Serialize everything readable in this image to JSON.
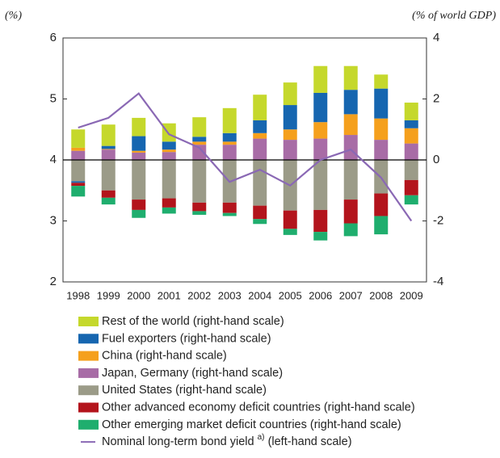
{
  "chart_data": {
    "type": "stacked_bar_line",
    "left_axis_label": "(%)",
    "right_axis_label": "(% of world GDP)",
    "categories": [
      "1998",
      "1999",
      "2000",
      "2001",
      "2002",
      "2003",
      "2004",
      "2005",
      "2006",
      "2007",
      "2008",
      "2009"
    ],
    "series": [
      {
        "name": "Rest of the world (right-hand scale)",
        "color": "#c5d82c",
        "axis": "y2",
        "values": [
          0.6,
          0.7,
          0.6,
          0.6,
          0.64,
          0.82,
          0.84,
          0.74,
          0.88,
          0.78,
          0.46,
          0.58
        ]
      },
      {
        "name": "Fuel exporters (right-hand scale)",
        "color": "#1666b0",
        "axis": "y2",
        "values": [
          -0.05,
          0.1,
          0.48,
          0.26,
          0.16,
          0.28,
          0.42,
          0.8,
          0.96,
          0.8,
          0.98,
          0.26
        ]
      },
      {
        "name": "China (right-hand scale)",
        "color": "#f5a01d",
        "axis": "y2",
        "values": [
          0.1,
          0.02,
          0.06,
          0.08,
          0.1,
          0.1,
          0.18,
          0.34,
          0.54,
          0.68,
          0.7,
          0.5
        ]
      },
      {
        "name": "Japan, Germany (right-hand scale)",
        "color": "#a86ca6",
        "axis": "y2",
        "values": [
          0.3,
          0.34,
          0.24,
          0.26,
          0.5,
          0.5,
          0.7,
          0.66,
          0.7,
          0.82,
          0.66,
          0.54
        ]
      },
      {
        "name": "United States (right-hand scale)",
        "color": "#9b9b88",
        "axis": "y2",
        "values": [
          -0.7,
          -1.0,
          -1.3,
          -1.26,
          -1.4,
          -1.4,
          -1.5,
          -1.66,
          -1.64,
          -1.3,
          -1.1,
          -0.66
        ]
      },
      {
        "name": "Other advanced economy deficit countries (right-hand scale)",
        "color": "#b3141c",
        "axis": "y2",
        "values": [
          -0.1,
          -0.24,
          -0.34,
          -0.3,
          -0.28,
          -0.34,
          -0.44,
          -0.6,
          -0.72,
          -0.78,
          -0.74,
          -0.5
        ]
      },
      {
        "name": "Other emerging market deficit countries (right-hand scale)",
        "color": "#1fae6e",
        "axis": "y2",
        "values": [
          -0.35,
          -0.22,
          -0.26,
          -0.2,
          -0.12,
          -0.1,
          -0.16,
          -0.2,
          -0.28,
          -0.42,
          -0.6,
          -0.3
        ]
      },
      {
        "name": "Nominal long-term bond yield",
        "note": "a)",
        "scale_label": "(left-hand scale)",
        "color": "#8a68b4",
        "type": "line",
        "axis": "y",
        "values": [
          4.53,
          4.69,
          5.09,
          4.42,
          4.2,
          3.64,
          3.84,
          3.58,
          4.0,
          4.17,
          3.71,
          3.0
        ]
      }
    ],
    "ylim": [
      2,
      6
    ],
    "yticks": [
      2,
      3,
      4,
      5,
      6
    ],
    "y2lim": [
      -4,
      4
    ],
    "y2ticks": [
      -4,
      -2,
      0,
      2,
      4
    ]
  }
}
